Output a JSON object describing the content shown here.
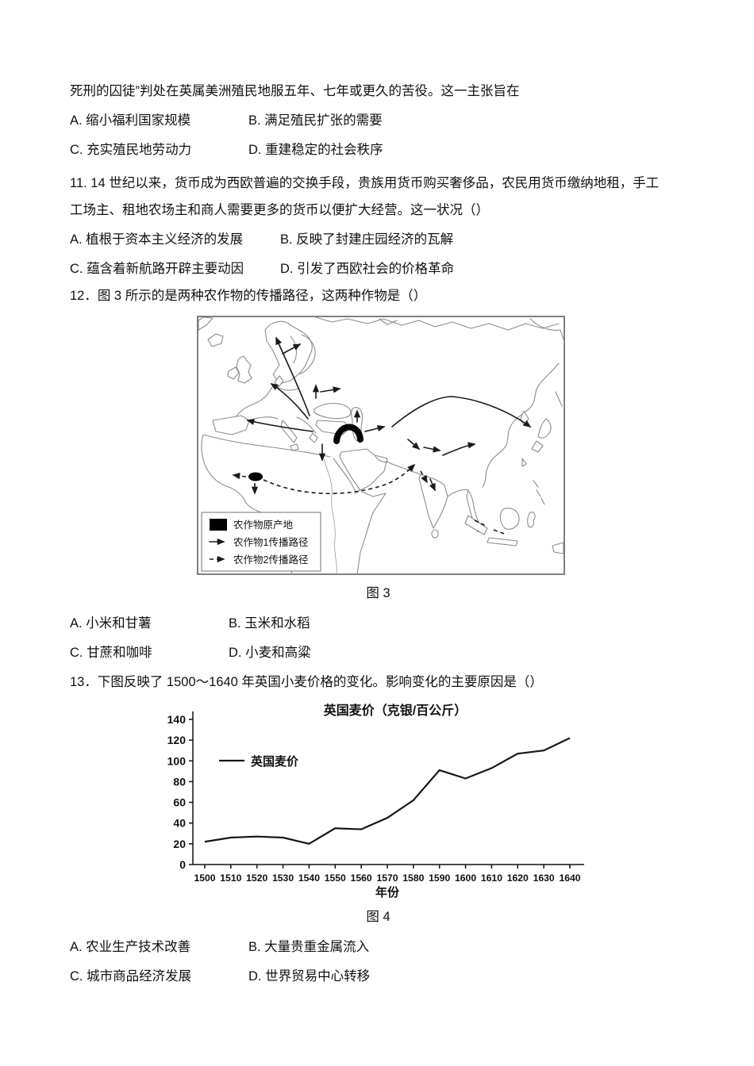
{
  "q10": {
    "stem": "死刑的囚徒”判处在英属美洲殖民地服五年、七年或更久的苦役。这一主张旨在",
    "opt_a": "A. 缩小福利国家规模",
    "opt_b": "B. 满足殖民扩张的需要",
    "opt_c": "C. 充实殖民地劳动力",
    "opt_d": "D. 重建稳定的社会秩序"
  },
  "q11": {
    "stem_line1": "11. 14 世纪以来，货币成为西欧普遍的交换手段，贵族用货币购买奢侈品，农民用货币缴纳地租，手工",
    "stem_line2": "工场主、租地农场主和商人需要更多的货币以便扩大经营。这一状况（）",
    "opt_a": "A. 植根于资本主义经济的发展",
    "opt_b": "B. 反映了封建庄园经济的瓦解",
    "opt_c": "C. 蕴含着新航路开辟主要动因",
    "opt_d": "D. 引发了西欧社会的价格革命"
  },
  "q12": {
    "stem": "12．图 3 所示的是两种农作物的传播路径，这两种作物是（）",
    "map_legend": {
      "origin": "农作物原产地",
      "crop1": "农作物1传播路径",
      "crop2": "农作物2传播路径"
    },
    "caption": "图 3",
    "opt_a": "A. 小米和甘薯",
    "opt_b": "B. 玉米和水稻",
    "opt_c": "C. 甘蔗和咖啡",
    "opt_d": "D. 小麦和高粱"
  },
  "q13": {
    "stem": "13．下图反映了 1500～1640 年英国小麦价格的变化。影响变化的主要原因是（）",
    "caption": "图 4",
    "opt_a": "A. 农业生产技术改善",
    "opt_b": "B. 大量贵重金属流入",
    "opt_c": "C. 城市商品经济发展",
    "opt_d": "D. 世界贸易中心转移"
  },
  "chart_data": {
    "type": "line",
    "title": "英国麦价（克银/百公斤）",
    "xlabel": "年份",
    "ylabel": "",
    "legend": [
      "英国麦价"
    ],
    "legend_position": "upper-left",
    "grid": false,
    "x": [
      1500,
      1510,
      1520,
      1530,
      1540,
      1550,
      1560,
      1570,
      1580,
      1590,
      1600,
      1610,
      1620,
      1630,
      1640
    ],
    "series": [
      {
        "name": "英国麦价",
        "values": [
          22,
          26,
          27,
          26,
          20,
          35,
          34,
          45,
          62,
          91,
          83,
          93,
          107,
          110,
          122
        ]
      }
    ],
    "ylim": [
      0,
      140
    ],
    "yticks": [
      0,
      20,
      40,
      60,
      80,
      100,
      120,
      140
    ]
  }
}
